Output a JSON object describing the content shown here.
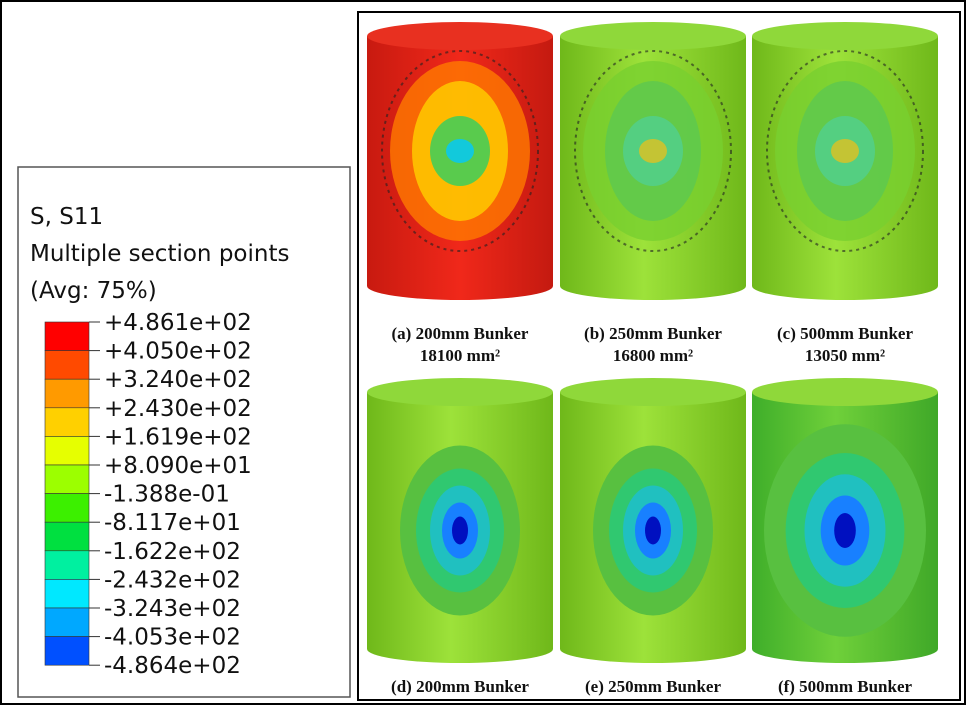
{
  "legend": {
    "title": [
      "S, S11",
      "Multiple section points",
      "(Avg: 75%)"
    ],
    "labels": [
      "+4.861e+02",
      "+4.050e+02",
      "+3.240e+02",
      "+2.430e+02",
      "+1.619e+02",
      "+8.090e+01",
      "-1.388e-01",
      "-8.117e+01",
      "-1.622e+02",
      "-2.432e+02",
      "-3.243e+02",
      "-4.053e+02",
      "-4.864e+02"
    ]
  },
  "panels": [
    {
      "caption": "(a) 200mm Bunker",
      "area": "18100 mm²"
    },
    {
      "caption": "(b) 250mm Bunker",
      "area": "16800 mm²"
    },
    {
      "caption": "(c) 500mm Bunker",
      "area": "13050 mm²"
    },
    {
      "caption": "(d) 200mm Bunker"
    },
    {
      "caption": "(e) 250mm Bunker"
    },
    {
      "caption": "(f) 500mm Bunker"
    }
  ]
}
